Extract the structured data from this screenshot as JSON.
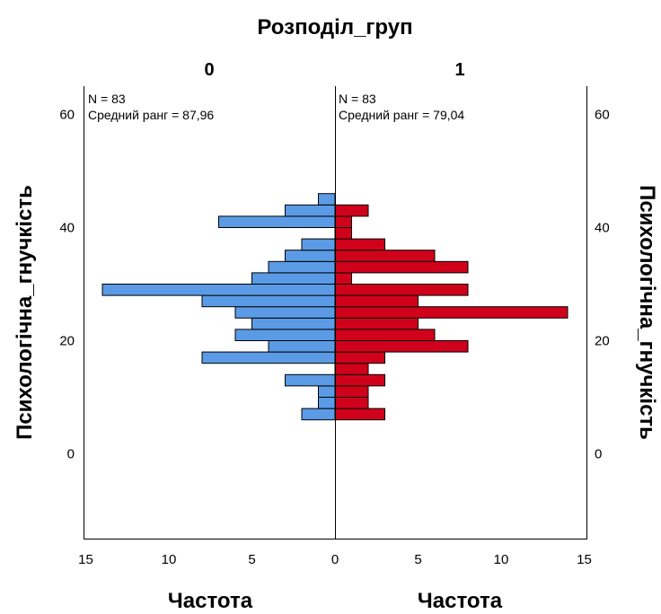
{
  "chart_data": {
    "type": "bar",
    "title": "Розподіл_груп",
    "ylabel": "Психологічна_гнучкість",
    "xlabel": "Частота",
    "ylim": [
      -15,
      65
    ],
    "yticks": [
      "0",
      "20",
      "40",
      "60"
    ],
    "xticks_left": [
      "15",
      "10",
      "5",
      "0"
    ],
    "xticks_right": [
      "0",
      "5",
      "10",
      "15"
    ],
    "bin_width": 2,
    "panels": [
      {
        "group": "0",
        "color": "#5B9BE6",
        "annotation_n": "N = 83",
        "annotation_rank": "Средний ранг = 87,96",
        "bins": [
          {
            "x": 7,
            "freq": 2
          },
          {
            "x": 9,
            "freq": 1
          },
          {
            "x": 11,
            "freq": 1
          },
          {
            "x": 13,
            "freq": 3
          },
          {
            "x": 17,
            "freq": 8
          },
          {
            "x": 19,
            "freq": 4
          },
          {
            "x": 21,
            "freq": 6
          },
          {
            "x": 23,
            "freq": 5
          },
          {
            "x": 25,
            "freq": 6
          },
          {
            "x": 27,
            "freq": 8
          },
          {
            "x": 29,
            "freq": 14
          },
          {
            "x": 31,
            "freq": 5
          },
          {
            "x": 33,
            "freq": 4
          },
          {
            "x": 35,
            "freq": 3
          },
          {
            "x": 37,
            "freq": 2
          },
          {
            "x": 41,
            "freq": 7
          },
          {
            "x": 43,
            "freq": 3
          },
          {
            "x": 45,
            "freq": 1
          }
        ]
      },
      {
        "group": "1",
        "color": "#D0021B",
        "annotation_n": "N = 83",
        "annotation_rank": "Средний ранг = 79,04",
        "bins": [
          {
            "x": 7,
            "freq": 3
          },
          {
            "x": 9,
            "freq": 2
          },
          {
            "x": 11,
            "freq": 2
          },
          {
            "x": 13,
            "freq": 3
          },
          {
            "x": 15,
            "freq": 2
          },
          {
            "x": 17,
            "freq": 3
          },
          {
            "x": 19,
            "freq": 8
          },
          {
            "x": 21,
            "freq": 6
          },
          {
            "x": 23,
            "freq": 5
          },
          {
            "x": 25,
            "freq": 14
          },
          {
            "x": 27,
            "freq": 5
          },
          {
            "x": 29,
            "freq": 8
          },
          {
            "x": 31,
            "freq": 1
          },
          {
            "x": 33,
            "freq": 8
          },
          {
            "x": 35,
            "freq": 6
          },
          {
            "x": 37,
            "freq": 3
          },
          {
            "x": 39,
            "freq": 1
          },
          {
            "x": 41,
            "freq": 1
          },
          {
            "x": 43,
            "freq": 2
          }
        ]
      }
    ]
  }
}
